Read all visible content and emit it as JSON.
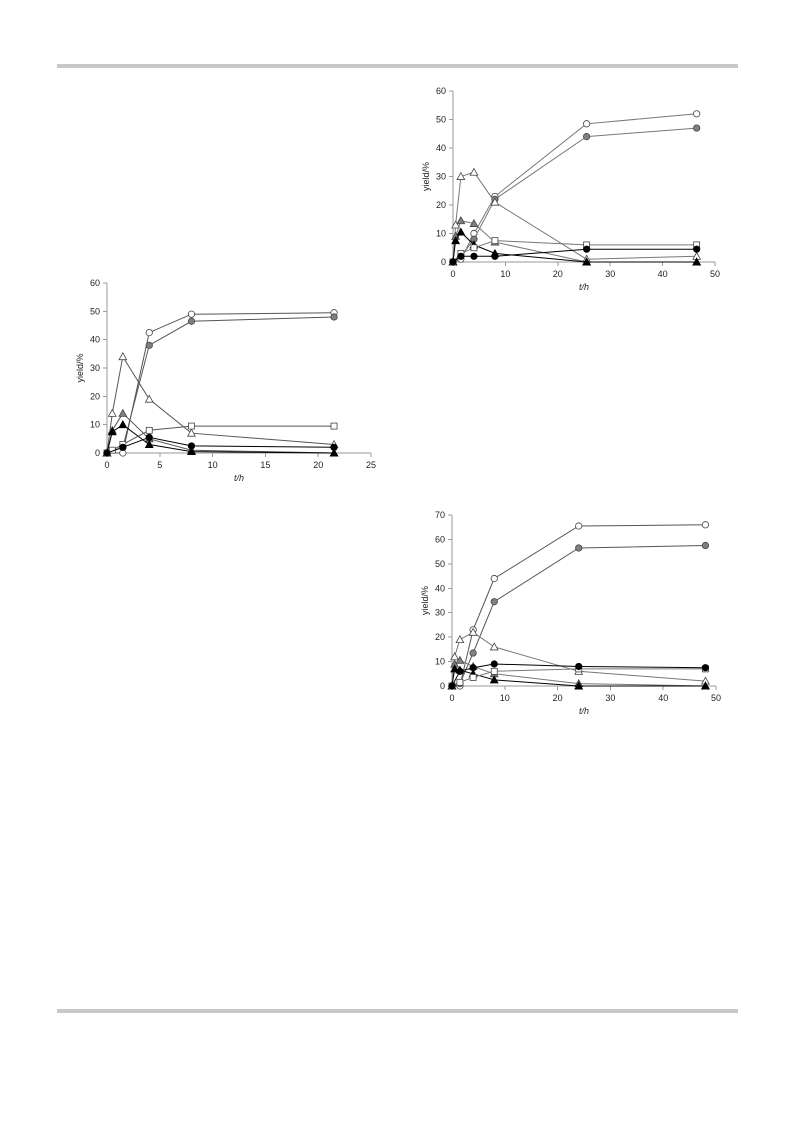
{
  "chart_data": [
    {
      "type": "line",
      "xlabel": "t/h",
      "ylabel": "yield/%",
      "xlim": [
        0,
        50
      ],
      "ylim": [
        0,
        60
      ],
      "xticks": [
        0,
        10,
        20,
        30,
        40,
        50
      ],
      "yticks": [
        0,
        10,
        20,
        30,
        40,
        50,
        60
      ],
      "series": [
        {
          "marker": "circle-open",
          "stroke": "#777777",
          "x": [
            0,
            1.5,
            4,
            8,
            25.5,
            46.5
          ],
          "y": [
            0,
            1,
            10,
            23,
            48.5,
            52
          ]
        },
        {
          "marker": "circle-gray",
          "stroke": "#777777",
          "x": [
            0,
            1.5,
            4,
            8,
            25.5,
            46.5
          ],
          "y": [
            0,
            2,
            8,
            22,
            44,
            47
          ]
        },
        {
          "marker": "triangle-open",
          "stroke": "#777777",
          "x": [
            0,
            0.5,
            1.5,
            4,
            8,
            25.5,
            46.5
          ],
          "y": [
            0,
            13,
            30,
            31.5,
            21,
            1,
            2
          ]
        },
        {
          "marker": "triangle-gray",
          "stroke": "#777777",
          "x": [
            0,
            0.5,
            1.5,
            4,
            8,
            25.5,
            46.5
          ],
          "y": [
            0,
            9,
            14.5,
            13.5,
            7,
            0,
            0
          ]
        },
        {
          "marker": "triangle-black",
          "stroke": "#000000",
          "x": [
            0,
            0.5,
            1.5,
            4,
            8,
            25.5,
            46.5
          ],
          "y": [
            0,
            7.5,
            10.5,
            6,
            3,
            0,
            0
          ]
        },
        {
          "marker": "square-open",
          "stroke": "#777777",
          "x": [
            0,
            1.5,
            4,
            8,
            25.5,
            46.5
          ],
          "y": [
            0,
            3,
            5,
            7.5,
            6,
            6
          ]
        },
        {
          "marker": "circle-black",
          "stroke": "#000000",
          "x": [
            0,
            1.5,
            4,
            8,
            25.5,
            46.5
          ],
          "y": [
            0,
            2,
            2,
            2,
            4.5,
            4.5
          ]
        }
      ]
    },
    {
      "type": "line",
      "xlabel": "t/h",
      "ylabel": "yield/%",
      "xlim": [
        0,
        25
      ],
      "ylim": [
        0,
        60
      ],
      "xticks": [
        0,
        5,
        10,
        15,
        20,
        25
      ],
      "yticks": [
        0,
        10,
        20,
        30,
        40,
        50,
        60
      ],
      "series": [
        {
          "marker": "circle-open",
          "stroke": "#555555",
          "x": [
            0,
            1.5,
            4,
            8,
            21.5
          ],
          "y": [
            0,
            0,
            42.5,
            49,
            49.5
          ]
        },
        {
          "marker": "circle-gray",
          "stroke": "#555555",
          "x": [
            0,
            1.5,
            4,
            8,
            21.5
          ],
          "y": [
            0,
            2,
            38,
            46.5,
            48
          ]
        },
        {
          "marker": "triangle-open",
          "stroke": "#555555",
          "x": [
            0,
            0.5,
            1.5,
            4,
            8,
            21.5
          ],
          "y": [
            0,
            14,
            34,
            19,
            7,
            3
          ]
        },
        {
          "marker": "triangle-gray",
          "stroke": "#555555",
          "x": [
            0,
            0.5,
            1.5,
            4,
            8,
            21.5
          ],
          "y": [
            0,
            8,
            14,
            5,
            1,
            0
          ]
        },
        {
          "marker": "triangle-black",
          "stroke": "#000000",
          "x": [
            0,
            0.5,
            1.5,
            4,
            8,
            21.5
          ],
          "y": [
            0,
            7.5,
            10,
            3,
            0.5,
            0
          ]
        },
        {
          "marker": "square-open",
          "stroke": "#555555",
          "x": [
            0,
            0.5,
            1.5,
            4,
            8,
            21.5
          ],
          "y": [
            0,
            1,
            3,
            8,
            9.5,
            9.5
          ]
        },
        {
          "marker": "circle-black",
          "stroke": "#000000",
          "x": [
            0,
            1.5,
            4,
            8,
            21.5
          ],
          "y": [
            0,
            2,
            5.5,
            2.5,
            2
          ]
        }
      ]
    },
    {
      "type": "line",
      "xlabel": "t/h",
      "ylabel": "yield/%",
      "xlim": [
        0,
        50
      ],
      "ylim": [
        0,
        70
      ],
      "xticks": [
        0,
        10,
        20,
        30,
        40,
        50
      ],
      "yticks": [
        0,
        10,
        20,
        30,
        40,
        50,
        60,
        70
      ],
      "series": [
        {
          "marker": "circle-open",
          "stroke": "#555555",
          "x": [
            0,
            1.5,
            4,
            8,
            24,
            48
          ],
          "y": [
            0,
            0,
            23,
            44,
            65.5,
            66
          ]
        },
        {
          "marker": "circle-gray",
          "stroke": "#555555",
          "x": [
            0,
            1.5,
            4,
            8,
            24,
            48
          ],
          "y": [
            0,
            1,
            13.5,
            34.5,
            56.5,
            57.5
          ]
        },
        {
          "marker": "triangle-open",
          "stroke": "#777777",
          "x": [
            0,
            0.5,
            1.5,
            4,
            8,
            24,
            48
          ],
          "y": [
            0,
            12,
            19,
            22,
            16,
            6,
            2
          ]
        },
        {
          "marker": "triangle-gray",
          "stroke": "#777777",
          "x": [
            0,
            0.5,
            1.5,
            4,
            8,
            24,
            48
          ],
          "y": [
            0,
            9,
            10.5,
            8,
            5,
            1,
            0
          ]
        },
        {
          "marker": "triangle-black",
          "stroke": "#000000",
          "x": [
            0,
            0.5,
            1.5,
            4,
            8,
            24,
            48
          ],
          "y": [
            0,
            7,
            6.5,
            5,
            2.5,
            0,
            0
          ]
        },
        {
          "marker": "square-open",
          "stroke": "#777777",
          "x": [
            0,
            1.5,
            4,
            8,
            24,
            48
          ],
          "y": [
            0,
            1.5,
            3.5,
            6,
            7,
            7
          ]
        },
        {
          "marker": "circle-black",
          "stroke": "#000000",
          "x": [
            0,
            1.5,
            4,
            8,
            24,
            48
          ],
          "y": [
            0,
            6,
            7.5,
            9,
            8,
            7.5
          ]
        }
      ]
    }
  ]
}
